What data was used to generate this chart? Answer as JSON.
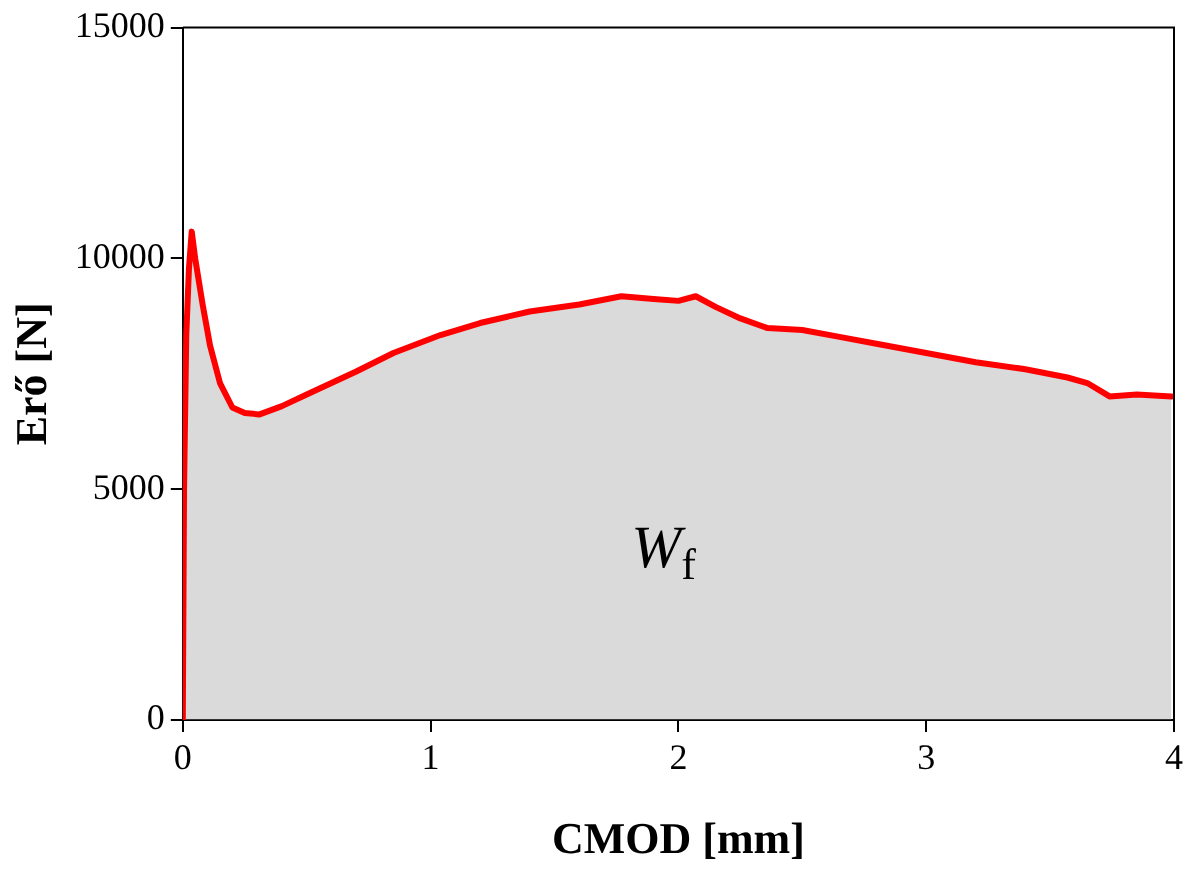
{
  "chart_data": {
    "type": "area",
    "xlabel": "CMOD [mm]",
    "ylabel": "Erő [N]",
    "xlim": [
      0,
      4
    ],
    "xticks": [
      0,
      1,
      2,
      3,
      4
    ],
    "ylim": [
      0,
      15000
    ],
    "yticks": [
      0,
      5000,
      10000,
      15000
    ],
    "grid": false,
    "legend": false,
    "marker": "none",
    "line_style": "solid",
    "series": [
      {
        "color": "#ff0000",
        "x": [
          0,
          0.005,
          0.014,
          0.025,
          0.036,
          0.05,
          0.08,
          0.11,
          0.15,
          0.2,
          0.25,
          0.31,
          0.4,
          0.5,
          0.7,
          0.85,
          1.04,
          1.2,
          1.4,
          1.6,
          1.77,
          1.9,
          2.0,
          2.07,
          2.15,
          2.25,
          2.36,
          2.5,
          2.65,
          2.81,
          3.0,
          3.2,
          3.4,
          3.57,
          3.65,
          3.74,
          3.85,
          3.99
        ],
        "values": [
          0,
          5000,
          8340,
          9800,
          10580,
          10000,
          9000,
          8110,
          7300,
          6770,
          6650,
          6620,
          6800,
          7050,
          7550,
          7950,
          8340,
          8600,
          8850,
          9000,
          9180,
          9120,
          9080,
          9180,
          8950,
          8700,
          8490,
          8450,
          8300,
          8140,
          7950,
          7750,
          7600,
          7420,
          7300,
          7010,
          7050,
          7010
        ]
      }
    ],
    "annotations": [
      "W$_{f}$"
    ]
  }
}
